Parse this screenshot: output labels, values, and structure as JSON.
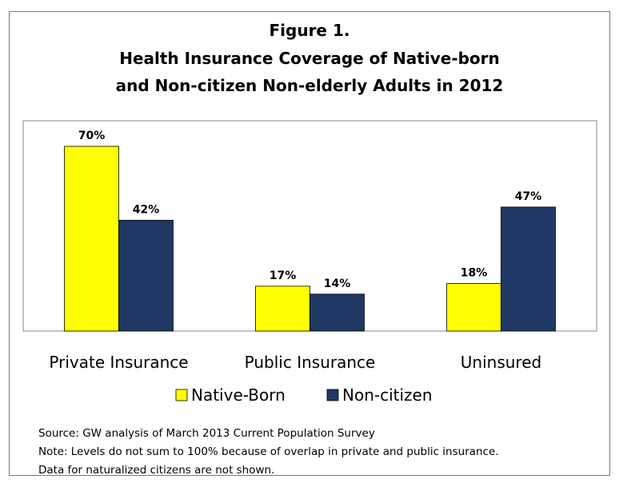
{
  "chart_data": {
    "type": "bar",
    "title": [
      "Figure 1.",
      "Health Insurance Coverage of Native-born",
      "and Non-citizen Non-elderly Adults in 2012"
    ],
    "categories": [
      "Private Insurance",
      "Public Insurance",
      "Uninsured"
    ],
    "series": [
      {
        "name": "Native-Born",
        "values": [
          70,
          17,
          18
        ],
        "labels": [
          "70%",
          "17%",
          "18%"
        ],
        "color": "#ffff00"
      },
      {
        "name": "Non-citizen",
        "values": [
          42,
          14,
          47
        ],
        "labels": [
          "42%",
          "14%",
          "47%"
        ],
        "color": "#1f3864"
      }
    ],
    "ylim": [
      0,
      80
    ],
    "grid": false,
    "legend": "bottom"
  },
  "notes": {
    "source": "Source: GW analysis of March 2013 Current Population Survey",
    "note": "Note: Levels do not sum to 100% because of overlap in private and public insurance.",
    "extra": "Data for naturalized citizens are not shown."
  }
}
